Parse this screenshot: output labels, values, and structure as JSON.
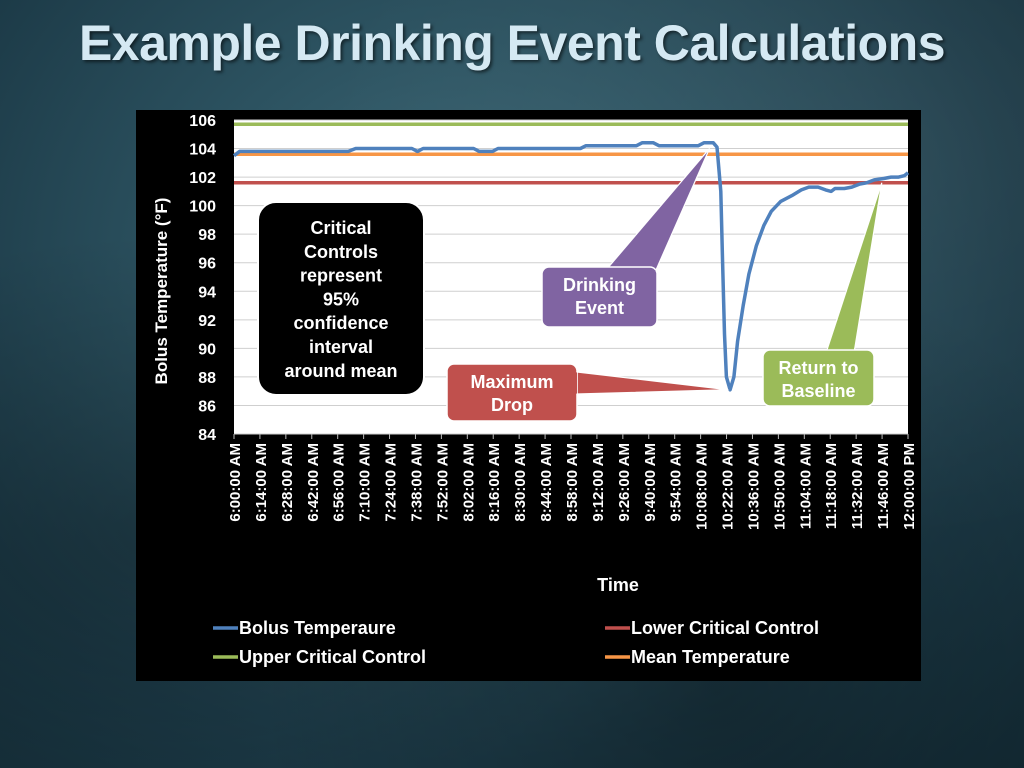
{
  "slide": {
    "title": "Example Drinking Event Calculations"
  },
  "colors": {
    "bolus": "#4f81bd",
    "lower": "#c0504d",
    "upper": "#9bbb59",
    "mean": "#f79646",
    "drinking_callout": "#8064a2",
    "drop_callout": "#c0504d",
    "baseline_callout": "#9bbb59",
    "note_bg": "#000000"
  },
  "chart_data": {
    "type": "line",
    "title": "",
    "xlabel": "Time",
    "ylabel": "Bolus Temperature (°F)",
    "ylim": [
      84,
      106
    ],
    "yticks": [
      84,
      86,
      88,
      90,
      92,
      94,
      96,
      98,
      100,
      102,
      104,
      106
    ],
    "xlim": [
      "6:00:00 AM",
      "12:00:00 PM"
    ],
    "x_tick_labels": [
      "6:00:00 AM",
      "6:14:00 AM",
      "6:28:00 AM",
      "6:42:00 AM",
      "6:56:00 AM",
      "7:10:00 AM",
      "7:24:00 AM",
      "7:38:00 AM",
      "7:52:00 AM",
      "8:02:00 AM",
      "8:16:00 AM",
      "8:30:00 AM",
      "8:44:00 AM",
      "8:58:00 AM",
      "9:12:00 AM",
      "9:26:00 AM",
      "9:40:00 AM",
      "9:54:00 AM",
      "10:08:00 AM",
      "10:22:00 AM",
      "10:36:00 AM",
      "10:50:00 AM",
      "11:04:00 AM",
      "11:18:00 AM",
      "11:32:00 AM",
      "11:46:00 AM",
      "12:00:00 PM"
    ],
    "grid": true,
    "legend_position": "bottom",
    "series": [
      {
        "name": "Bolus Temperaure",
        "color_key": "bolus",
        "points": [
          [
            "6:00:00 AM",
            103.5
          ],
          [
            "6:03:00 AM",
            103.8
          ],
          [
            "6:14:00 AM",
            103.8
          ],
          [
            "6:28:00 AM",
            103.8
          ],
          [
            "6:42:00 AM",
            103.8
          ],
          [
            "6:56:00 AM",
            103.8
          ],
          [
            "7:01:00 AM",
            103.8
          ],
          [
            "7:05:00 AM",
            104.0
          ],
          [
            "7:10:00 AM",
            104.0
          ],
          [
            "7:24:00 AM",
            104.0
          ],
          [
            "7:35:00 AM",
            104.0
          ],
          [
            "7:38:00 AM",
            103.8
          ],
          [
            "7:41:00 AM",
            104.0
          ],
          [
            "7:52:00 AM",
            104.0
          ],
          [
            "8:02:00 AM",
            104.0
          ],
          [
            "8:08:00 AM",
            104.0
          ],
          [
            "8:11:00 AM",
            103.8
          ],
          [
            "8:18:00 AM",
            103.8
          ],
          [
            "8:21:00 AM",
            104.0
          ],
          [
            "8:30:00 AM",
            104.0
          ],
          [
            "8:44:00 AM",
            104.0
          ],
          [
            "8:58:00 AM",
            104.0
          ],
          [
            "9:05:00 AM",
            104.0
          ],
          [
            "9:08:00 AM",
            104.2
          ],
          [
            "9:12:00 AM",
            104.2
          ],
          [
            "9:26:00 AM",
            104.2
          ],
          [
            "9:35:00 AM",
            104.2
          ],
          [
            "9:38:00 AM",
            104.4
          ],
          [
            "9:44:00 AM",
            104.4
          ],
          [
            "9:47:00 AM",
            104.2
          ],
          [
            "9:54:00 AM",
            104.2
          ],
          [
            "10:08:00 AM",
            104.2
          ],
          [
            "10:11:00 AM",
            104.4
          ],
          [
            "10:16:00 AM",
            104.4
          ],
          [
            "10:18:00 AM",
            104.1
          ],
          [
            "10:20:00 AM",
            101.0
          ],
          [
            "10:21:00 AM",
            96.0
          ],
          [
            "10:22:00 AM",
            91.0
          ],
          [
            "10:23:00 AM",
            88.0
          ],
          [
            "10:25:00 AM",
            87.1
          ],
          [
            "10:27:00 AM",
            88.0
          ],
          [
            "10:29:00 AM",
            90.5
          ],
          [
            "10:32:00 AM",
            93.0
          ],
          [
            "10:35:00 AM",
            95.2
          ],
          [
            "10:39:00 AM",
            97.2
          ],
          [
            "10:43:00 AM",
            98.6
          ],
          [
            "10:47:00 AM",
            99.6
          ],
          [
            "10:52:00 AM",
            100.3
          ],
          [
            "10:58:00 AM",
            100.7
          ],
          [
            "11:03:00 AM",
            101.1
          ],
          [
            "11:07:00 AM",
            101.3
          ],
          [
            "11:12:00 AM",
            101.3
          ],
          [
            "11:16:00 AM",
            101.1
          ],
          [
            "11:19:00 AM",
            101.0
          ],
          [
            "11:21:00 AM",
            101.2
          ],
          [
            "11:26:00 AM",
            101.2
          ],
          [
            "11:30:00 AM",
            101.3
          ],
          [
            "11:34:00 AM",
            101.5
          ],
          [
            "11:38:00 AM",
            101.6
          ],
          [
            "11:42:00 AM",
            101.8
          ],
          [
            "11:47:00 AM",
            101.9
          ],
          [
            "11:51:00 AM",
            102.0
          ],
          [
            "11:55:00 AM",
            102.0
          ],
          [
            "11:58:00 AM",
            102.1
          ],
          [
            "12:00:00 PM",
            102.3
          ]
        ]
      },
      {
        "name": "Lower Critical Control",
        "color_key": "lower",
        "constant": 101.6
      },
      {
        "name": "Upper Critical Control",
        "color_key": "upper",
        "constant": 105.7
      },
      {
        "name": "Mean Temperature",
        "color_key": "mean",
        "constant": 103.6
      }
    ],
    "annotations": [
      {
        "id": "drinking",
        "lines": [
          "Drinking",
          "Event"
        ],
        "color_key": "drinking_callout",
        "target": [
          "10:14:00 AM",
          104.0
        ]
      },
      {
        "id": "drop",
        "lines": [
          "Maximum",
          "Drop"
        ],
        "color_key": "drop_callout",
        "target": [
          "10:24:00 AM",
          87.1
        ]
      },
      {
        "id": "baseline",
        "lines": [
          "Return to",
          "Baseline"
        ],
        "color_key": "baseline_callout",
        "target": [
          "11:46:00 AM",
          101.6
        ]
      },
      {
        "id": "note",
        "lines": [
          "Critical",
          "Controls",
          "represent",
          "95%",
          "confidence",
          "interval",
          "around mean"
        ],
        "color_key": "note_bg"
      }
    ]
  }
}
